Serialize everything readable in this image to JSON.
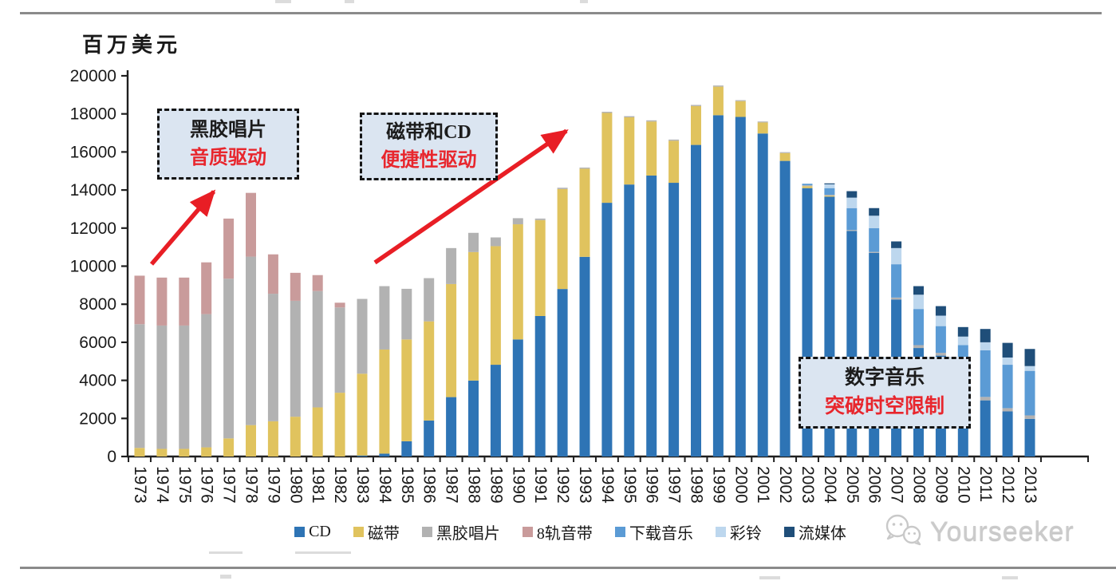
{
  "page": {
    "unit_label": "百万美元",
    "watermark": "Yourseeker"
  },
  "annotations": [
    {
      "id": "vinyl-era",
      "line1": "黑胶唱片",
      "line2": "音质驱动"
    },
    {
      "id": "tape-cd-era",
      "line1": "磁带和CD",
      "line2": "便捷性驱动"
    },
    {
      "id": "digital-era",
      "line1": "数字音乐",
      "line2": "突破时空限制"
    }
  ],
  "colors": {
    "accent_red": "#e81e25",
    "annotation_fill": "#dbe5f1",
    "annotation_text": "#1c1c1c",
    "annotation_red_text": "#e8262d",
    "axis": "#1f1f1f",
    "watermark_gray": "#cbcbcb"
  },
  "chart_data": {
    "type": "bar",
    "stacked": true,
    "title": "",
    "unit": "百万美元",
    "xlabel": "",
    "ylabel": "百万美元",
    "ylim": [
      0,
      20000
    ],
    "ytick_step": 2000,
    "grid": false,
    "legend_position": "bottom",
    "categories": [
      1973,
      1974,
      1975,
      1976,
      1977,
      1978,
      1979,
      1980,
      1981,
      1982,
      1983,
      1984,
      1985,
      1986,
      1987,
      1988,
      1989,
      1990,
      1991,
      1992,
      1993,
      1994,
      1995,
      1996,
      1997,
      1998,
      1999,
      2000,
      2001,
      2002,
      2003,
      2004,
      2005,
      2006,
      2007,
      2008,
      2009,
      2010,
      2011,
      2012,
      2013
    ],
    "series": [
      {
        "key": "cd",
        "name": "CD",
        "color": "#2e74b5",
        "values": [
          0,
          0,
          0,
          0,
          0,
          0,
          0,
          0,
          0,
          0,
          50,
          150,
          800,
          1890,
          3120,
          3990,
          4820,
          6150,
          7380,
          8800,
          10490,
          13330,
          14290,
          14760,
          14380,
          16370,
          17930,
          17840,
          16970,
          15530,
          14100,
          13650,
          11850,
          10700,
          8250,
          5700,
          5300,
          3700,
          2950,
          2370,
          1980
        ]
      },
      {
        "key": "cassette",
        "name": "磁带",
        "color": "#e0c35e",
        "values": [
          450,
          400,
          400,
          480,
          950,
          1650,
          1850,
          2090,
          2580,
          3350,
          4300,
          5470,
          5350,
          5210,
          5940,
          6750,
          6230,
          6050,
          5040,
          5250,
          4630,
          4720,
          3530,
          2840,
          2210,
          2040,
          1500,
          830,
          580,
          410,
          100,
          50,
          0,
          0,
          0,
          0,
          0,
          0,
          0,
          0,
          0
        ]
      },
      {
        "key": "vinyl",
        "name": "黑胶唱片",
        "color": "#b2b2b2",
        "values": [
          6500,
          6480,
          6480,
          7000,
          8390,
          8850,
          6700,
          6090,
          6110,
          4480,
          3930,
          3330,
          2660,
          2270,
          1890,
          1010,
          460,
          320,
          80,
          70,
          60,
          60,
          60,
          60,
          60,
          60,
          60,
          50,
          50,
          50,
          50,
          50,
          50,
          50,
          100,
          150,
          150,
          150,
          180,
          170,
          180
        ]
      },
      {
        "key": "eight_track",
        "name": "8轨音带",
        "color": "#c99b9b",
        "values": [
          2550,
          2520,
          2520,
          2720,
          3160,
          3350,
          2070,
          1470,
          840,
          250,
          0,
          0,
          0,
          0,
          0,
          0,
          0,
          0,
          0,
          0,
          0,
          0,
          0,
          0,
          0,
          0,
          0,
          0,
          0,
          0,
          0,
          0,
          0,
          0,
          0,
          0,
          0,
          0,
          0,
          0,
          0
        ]
      },
      {
        "key": "download",
        "name": "下载音乐",
        "color": "#5b9bd5",
        "values": [
          0,
          0,
          0,
          0,
          0,
          0,
          0,
          0,
          0,
          0,
          0,
          0,
          0,
          0,
          0,
          0,
          0,
          0,
          0,
          0,
          0,
          0,
          0,
          0,
          0,
          0,
          0,
          0,
          0,
          0,
          80,
          350,
          1150,
          1250,
          1750,
          1900,
          1400,
          2000,
          2450,
          2280,
          2340
        ]
      },
      {
        "key": "ringtone",
        "name": "彩铃",
        "color": "#bdd7ee",
        "values": [
          0,
          0,
          0,
          0,
          0,
          0,
          0,
          0,
          0,
          0,
          0,
          0,
          0,
          0,
          0,
          0,
          0,
          0,
          0,
          0,
          0,
          0,
          0,
          0,
          0,
          0,
          0,
          0,
          0,
          0,
          0,
          200,
          550,
          650,
          850,
          750,
          550,
          450,
          420,
          380,
          250
        ]
      },
      {
        "key": "streaming",
        "name": "流媒体",
        "color": "#1f4e79",
        "values": [
          0,
          0,
          0,
          0,
          0,
          0,
          0,
          0,
          0,
          0,
          0,
          0,
          0,
          0,
          0,
          0,
          0,
          0,
          0,
          0,
          0,
          0,
          0,
          0,
          0,
          0,
          0,
          0,
          0,
          0,
          0,
          50,
          340,
          400,
          350,
          450,
          500,
          500,
          700,
          770,
          900
        ]
      }
    ]
  }
}
